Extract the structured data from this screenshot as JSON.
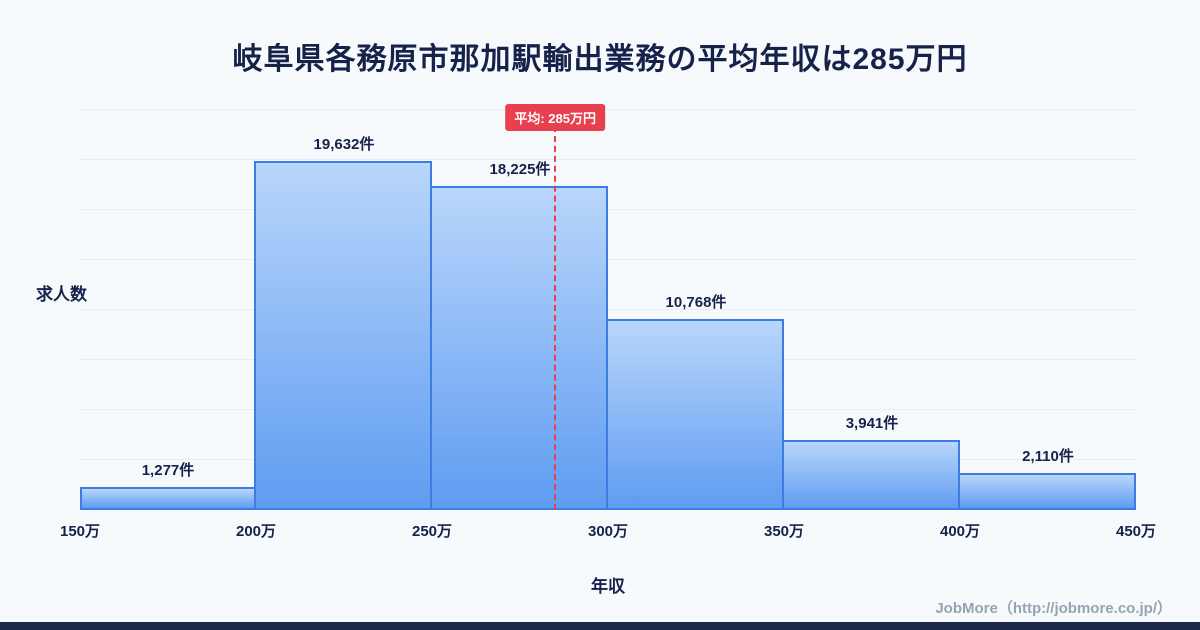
{
  "page": {
    "footer_credit": "JobMore（http://jobmore.co.jp/）"
  },
  "chart_data": {
    "type": "bar",
    "title": "岐阜県各務原市那加駅輸出業務の平均年収は285万円",
    "xlabel": "年収",
    "ylabel": "求人数",
    "bin_labels": [
      "150万",
      "200万",
      "250万",
      "300万",
      "350万",
      "400万",
      "450万"
    ],
    "bin_values": [
      150,
      200,
      250,
      300,
      350,
      400,
      450
    ],
    "values": [
      1277,
      19632,
      18225,
      10768,
      3941,
      2110
    ],
    "value_labels": [
      "1,277件",
      "19,632件",
      "18,225件",
      "10,768件",
      "3,941件",
      "2,110件"
    ],
    "ylim": [
      0,
      22500
    ],
    "grid": true,
    "legend": "none",
    "average_line": {
      "value": 285,
      "label": "平均: 285万円"
    },
    "colors": {
      "bar_gradient_top": "#b9d6fb",
      "bar_gradient_bottom": "#5f9cf1",
      "bar_border": "#3d7de2",
      "average_line": "#e8404e",
      "title_text": "#16224a",
      "background": "#f7fafd",
      "footer_text": "#98a2b3",
      "bottom_strip": "#1b2a4a"
    }
  }
}
